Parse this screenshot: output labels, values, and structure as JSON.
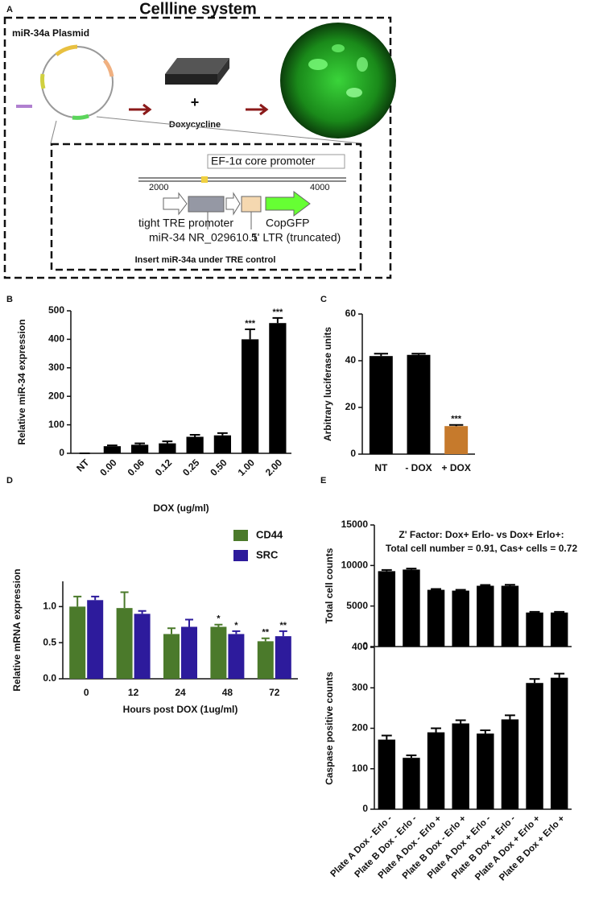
{
  "diagram": {
    "panel_label": "A",
    "title": "Cellline system",
    "plasmid_label": "miR-34a Plasmid",
    "plus": "+",
    "treatment": "Doxycycline",
    "promoter_box": "EF-1α core promoter",
    "scale_start": "2000",
    "scale_end": "4000",
    "feature_labels": [
      "tight TRE promoter",
      "miR-34 NR_029610.1",
      "CopGFP",
      "5' LTR (truncated)"
    ],
    "caption": "Insert miR-34a under TRE control"
  },
  "chart_data": [
    {
      "type": "bar",
      "panel_label": "B",
      "xlabel": "DOX (ug/ml)",
      "ylabel": "Relative miR-34 expression",
      "categories": [
        "NT",
        "0.00",
        "0.06",
        "0.12",
        "0.25",
        "0.50",
        "1.00",
        "2.00"
      ],
      "values": [
        0,
        25,
        30,
        35,
        58,
        63,
        400,
        457
      ],
      "errors": [
        0,
        3,
        5,
        7,
        7,
        8,
        35,
        18
      ],
      "annotations": [
        null,
        null,
        null,
        null,
        null,
        null,
        "***",
        "***"
      ],
      "color": "#000000",
      "ylim": [
        0,
        500
      ],
      "yticks": [
        0,
        100,
        200,
        300,
        400,
        500
      ]
    },
    {
      "type": "bar",
      "panel_label": "C",
      "ylabel": "Arbitrary luciferase units",
      "categories": [
        "NT",
        "- DOX",
        "+ DOX"
      ],
      "values": [
        42,
        42.5,
        12
      ],
      "errors": [
        1,
        0.5,
        0.5
      ],
      "annotations": [
        null,
        null,
        "***"
      ],
      "colors": [
        "#000000",
        "#000000",
        "#c67a2c"
      ],
      "ylim": [
        0,
        60
      ],
      "yticks": [
        0,
        20,
        40,
        60
      ]
    },
    {
      "type": "grouped-bar",
      "panel_label": "D",
      "xlabel": "Hours post DOX (1ug/ml)",
      "ylabel": "Relative mRNA expression",
      "categories": [
        "0",
        "12",
        "24",
        "48",
        "72"
      ],
      "legend": "upper right",
      "series": [
        {
          "name": "CD44",
          "color": "#4b7a2b",
          "values": [
            1.0,
            0.98,
            0.62,
            0.72,
            0.52
          ],
          "errors": [
            0.14,
            0.22,
            0.08,
            0.03,
            0.04
          ],
          "annotations": [
            null,
            null,
            null,
            "*",
            "**"
          ]
        },
        {
          "name": "SRC",
          "color": "#2d1b9c",
          "values": [
            1.09,
            0.9,
            0.72,
            0.62,
            0.59
          ],
          "errors": [
            0.05,
            0.04,
            0.1,
            0.04,
            0.07
          ],
          "annotations": [
            null,
            null,
            null,
            "*",
            "**"
          ]
        }
      ],
      "ylim": [
        0,
        1.35
      ],
      "yticks": [
        {
          "value": 0,
          "label": "0.0"
        },
        0.5,
        {
          "value": 1,
          "label": "1.0"
        }
      ]
    },
    {
      "type": "panel-bar",
      "panel_label": "E",
      "title_lines": [
        "Z' Factor: Dox+ Erlo- vs Dox+ Erlo+:",
        "Total cell number = 0.91, Cas+ cells = 0.72"
      ],
      "categories": [
        "Plate A Dox - Erlo -",
        "Plate B Dox - Erlo -",
        "Plate A Dox - Erlo +",
        "Plate B Dox - Erlo +",
        "Plate A Dox + Erlo -",
        "Plate B Dox + Erlo -",
        "Plate A Dox + Erlo +",
        "Plate B Dox + Erlo +"
      ],
      "color": "#000000",
      "panels": [
        {
          "ylabel": "Total cell counts",
          "values": [
            9300,
            9500,
            7000,
            6900,
            7500,
            7500,
            4200,
            4200
          ],
          "errors": [
            150,
            120,
            100,
            100,
            100,
            120,
            80,
            80
          ],
          "ylim": [
            0,
            15000
          ],
          "yticks": [
            0,
            5000,
            10000,
            15000
          ]
        },
        {
          "ylabel": "Caspase positive counts",
          "values": [
            172,
            127,
            190,
            212,
            187,
            222,
            312,
            325
          ],
          "errors": [
            10,
            6,
            10,
            8,
            8,
            10,
            10,
            10
          ],
          "ylim": [
            0,
            400
          ],
          "yticks": [
            0,
            100,
            200,
            300,
            400
          ]
        }
      ]
    }
  ]
}
